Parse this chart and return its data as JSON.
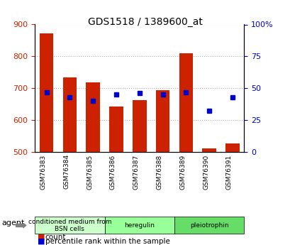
{
  "title": "GDS1518 / 1389600_at",
  "samples": [
    "GSM76383",
    "GSM76384",
    "GSM76385",
    "GSM76386",
    "GSM76387",
    "GSM76388",
    "GSM76389",
    "GSM76390",
    "GSM76391"
  ],
  "counts": [
    872,
    733,
    718,
    643,
    663,
    693,
    810,
    510,
    527
  ],
  "percentiles": [
    47,
    43,
    40,
    45,
    46,
    45,
    47,
    32,
    43
  ],
  "bar_bottom": 500,
  "ylim_left": [
    500,
    900
  ],
  "ylim_right": [
    0,
    100
  ],
  "yticks_left": [
    500,
    600,
    700,
    800,
    900
  ],
  "yticks_right": [
    0,
    25,
    50,
    75,
    100
  ],
  "yticklabels_right": [
    "0",
    "25",
    "50",
    "75",
    "100%"
  ],
  "groups": [
    {
      "label": "conditioned medium from\nBSN cells",
      "start": 0,
      "end": 3,
      "color": "#ccffcc"
    },
    {
      "label": "heregulin",
      "start": 3,
      "end": 6,
      "color": "#99ff99"
    },
    {
      "label": "pleiotrophin",
      "start": 6,
      "end": 9,
      "color": "#66dd66"
    }
  ],
  "bar_color": "#cc2200",
  "dot_color": "#0000cc",
  "agent_label": "agent",
  "background_color": "#ffffff",
  "plot_bg_color": "#ffffff",
  "tick_label_color_left": "#cc2200",
  "tick_label_color_right": "#0000cc",
  "grid_color": "#aaaaaa",
  "legend_count_color": "#cc2200",
  "legend_pct_color": "#0000cc"
}
